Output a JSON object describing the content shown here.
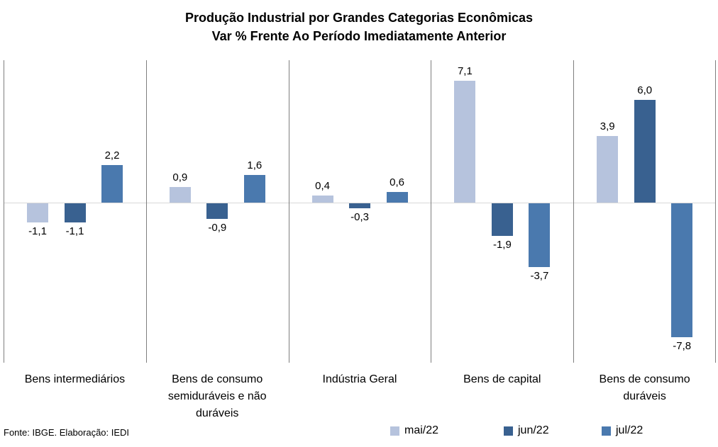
{
  "title": {
    "line1": "Produção Industrial por Grandes Categorias Econômicas",
    "line2": "Var % Frente Ao Período Imediatamente Anterior"
  },
  "source": "Fonte: IBGE. Elaboração: IEDI",
  "chart_data": {
    "type": "bar",
    "title": "Produção Industrial por Grandes Categorias Econômicas",
    "subtitle": "Var % Frente Ao Período Imediatamente Anterior",
    "categories": [
      "Bens intermediários",
      "Bens de consumo\nsemiduráveis e não\nduráveis",
      "Indústria Geral",
      "Bens de capital",
      "Bens de consumo\nduráveis"
    ],
    "series": [
      {
        "name": "mai/22",
        "color": "#b6c3dd",
        "values": [
          -1.1,
          0.9,
          0.4,
          7.1,
          3.9
        ]
      },
      {
        "name": "jun/22",
        "color": "#396190",
        "values": [
          -1.1,
          -0.9,
          -0.3,
          -1.9,
          6.0
        ]
      },
      {
        "name": "jul/22",
        "color": "#4a79ae",
        "values": [
          2.2,
          1.6,
          0.6,
          -3.7,
          -7.8
        ]
      }
    ],
    "data_labels": {
      "decimal_separator": ",",
      "decimals": 1
    },
    "ylim": [
      -9.3,
      8.3
    ],
    "grid": "zero-line-only",
    "axis_colors": {
      "panel_divider": "#7f7f7f",
      "zero_line": "#d9d9d9"
    },
    "legend_position": "bottom",
    "xlabel": "",
    "ylabel": ""
  }
}
